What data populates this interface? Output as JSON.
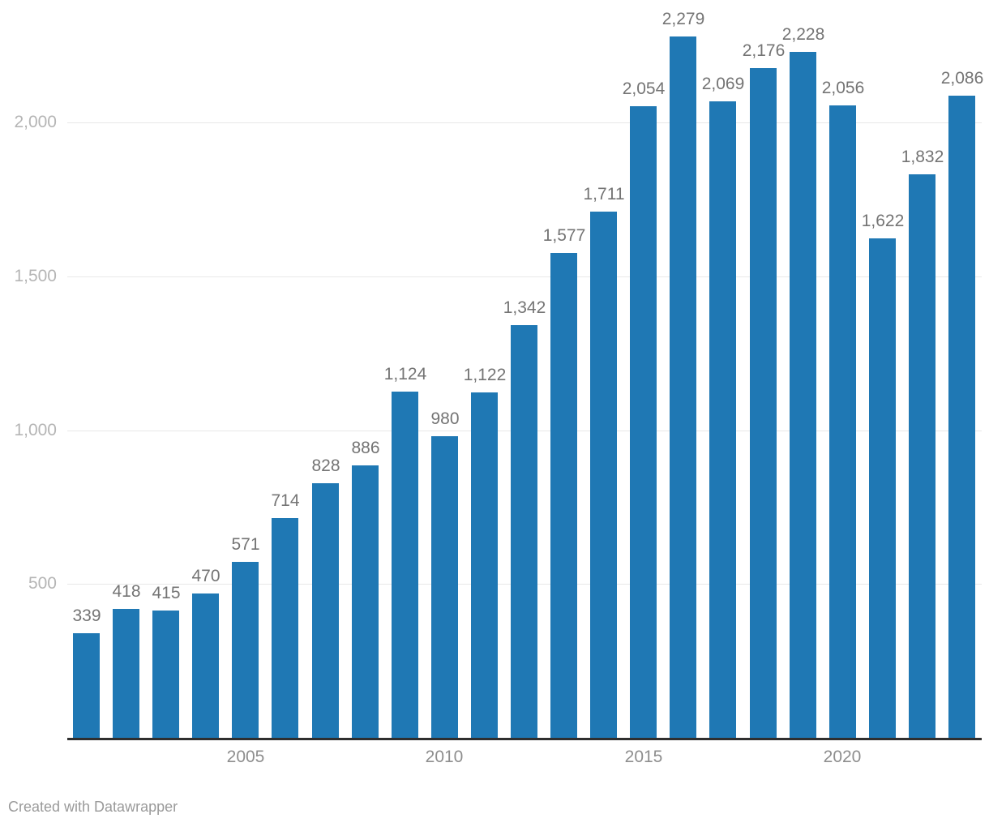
{
  "chart_data": {
    "type": "bar",
    "categories": [
      2001,
      2002,
      2003,
      2004,
      2005,
      2006,
      2007,
      2008,
      2009,
      2010,
      2011,
      2012,
      2013,
      2014,
      2015,
      2016,
      2017,
      2018,
      2019,
      2020,
      2021,
      2022,
      2023
    ],
    "values": [
      339,
      418,
      415,
      470,
      571,
      714,
      828,
      886,
      1124,
      980,
      1122,
      1342,
      1577,
      1711,
      2054,
      2279,
      2069,
      2176,
      2228,
      2056,
      1622,
      1832,
      2086
    ],
    "value_labels": [
      "339",
      "418",
      "415",
      "470",
      "571",
      "714",
      "828",
      "886",
      "1,124",
      "980",
      "1,122",
      "1,342",
      "1,577",
      "1,711",
      "2,054",
      "2,279",
      "2,069",
      "2,176",
      "2,228",
      "2,056",
      "1,622",
      "1,832",
      "2,086"
    ],
    "title": "",
    "xlabel": "",
    "ylabel": "",
    "ylim": [
      0,
      2400
    ],
    "grid": "horizontal",
    "legend": "none",
    "y_ticks": [
      {
        "label": "500",
        "value": 500
      },
      {
        "label": "1,000",
        "value": 1000
      },
      {
        "label": "1,500",
        "value": 1500
      },
      {
        "label": "2,000",
        "value": 2000
      }
    ],
    "x_ticks": [
      {
        "label": "2005",
        "category_index": 4
      },
      {
        "label": "2010",
        "category_index": 9
      },
      {
        "label": "2015",
        "category_index": 14
      },
      {
        "label": "2020",
        "category_index": 19
      }
    ],
    "colors": {
      "bar": "#1f78b4",
      "gridline": "#e8e8e8",
      "axis_line": "#2f2f2f",
      "value_label": "#747474",
      "y_tick_label": "#b5b5b5",
      "x_tick_label": "#8e8e8e"
    }
  },
  "footer": {
    "credit": "Created with Datawrapper",
    "credit_color": "#9a9a9a"
  }
}
